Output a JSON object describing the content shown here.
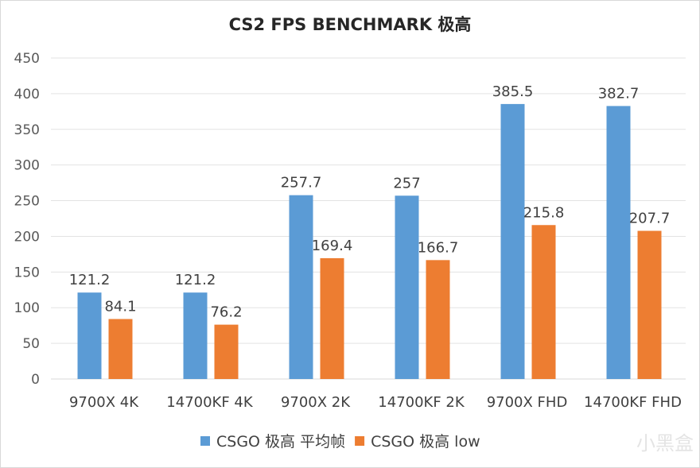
{
  "chart_data": {
    "type": "bar",
    "title": "CS2 FPS BENCHMARK 极高",
    "xlabel": "",
    "ylabel": "",
    "ylim": [
      0,
      450
    ],
    "yticks": [
      0,
      50,
      100,
      150,
      200,
      250,
      300,
      350,
      400,
      450
    ],
    "grid": true,
    "legend_position": "bottom",
    "categories": [
      "9700X 4K",
      "14700KF 4K",
      "9700X 2K",
      "14700KF 2K",
      "9700X FHD",
      "14700KF FHD"
    ],
    "series": [
      {
        "name": "CSGO 极高 平均帧",
        "color": "#5b9bd5",
        "values": [
          121.2,
          121.2,
          257.7,
          257,
          385.5,
          382.7
        ]
      },
      {
        "name": "CSGO 极高 low",
        "color": "#ed7d31",
        "values": [
          84.1,
          76.2,
          169.4,
          166.7,
          215.8,
          207.7
        ]
      }
    ]
  },
  "watermark": "小黑盒"
}
